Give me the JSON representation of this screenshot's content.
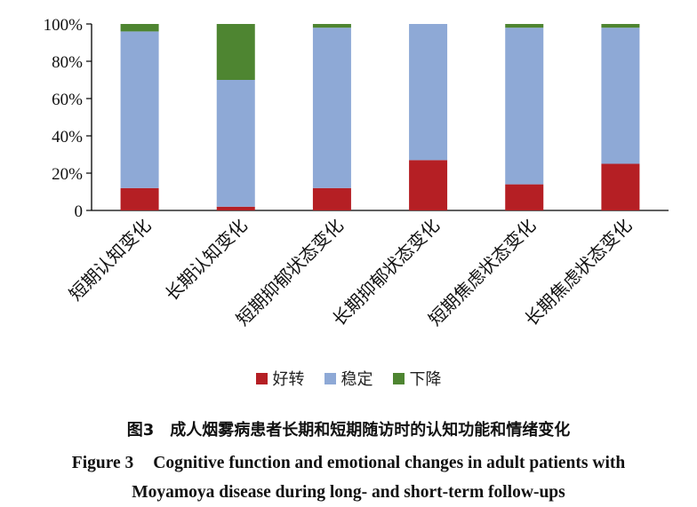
{
  "chart_data": {
    "type": "bar",
    "stacked": true,
    "categories": [
      "短期认知变化",
      "长期认知变化",
      "短期抑郁状态变化",
      "长期抑郁状态变化",
      "短期焦虑状态变化",
      "长期焦虑状态变化"
    ],
    "series": [
      {
        "name": "好转",
        "color": "#b51f24",
        "values": [
          12,
          2,
          12,
          27,
          14,
          25
        ]
      },
      {
        "name": "稳定",
        "color": "#8ea9d6",
        "values": [
          84,
          68,
          86,
          73,
          84,
          73
        ]
      },
      {
        "name": "下降",
        "color": "#4e8531",
        "values": [
          4,
          30,
          2,
          0,
          2,
          2
        ]
      }
    ],
    "ylim": [
      0,
      100
    ],
    "yticks": [
      "0",
      "20%",
      "40%",
      "60%",
      "80%",
      "100%"
    ],
    "grid": false,
    "legend": "bottom"
  },
  "caption": {
    "cn": "图3　成人烟雾病患者长期和短期随访时的认知功能和情绪变化",
    "en_label": "Figure 3",
    "en_line1": "Cognitive function and emotional changes in adult patients with",
    "en_line2": "Moyamoya disease during long- and short-term follow-ups"
  }
}
